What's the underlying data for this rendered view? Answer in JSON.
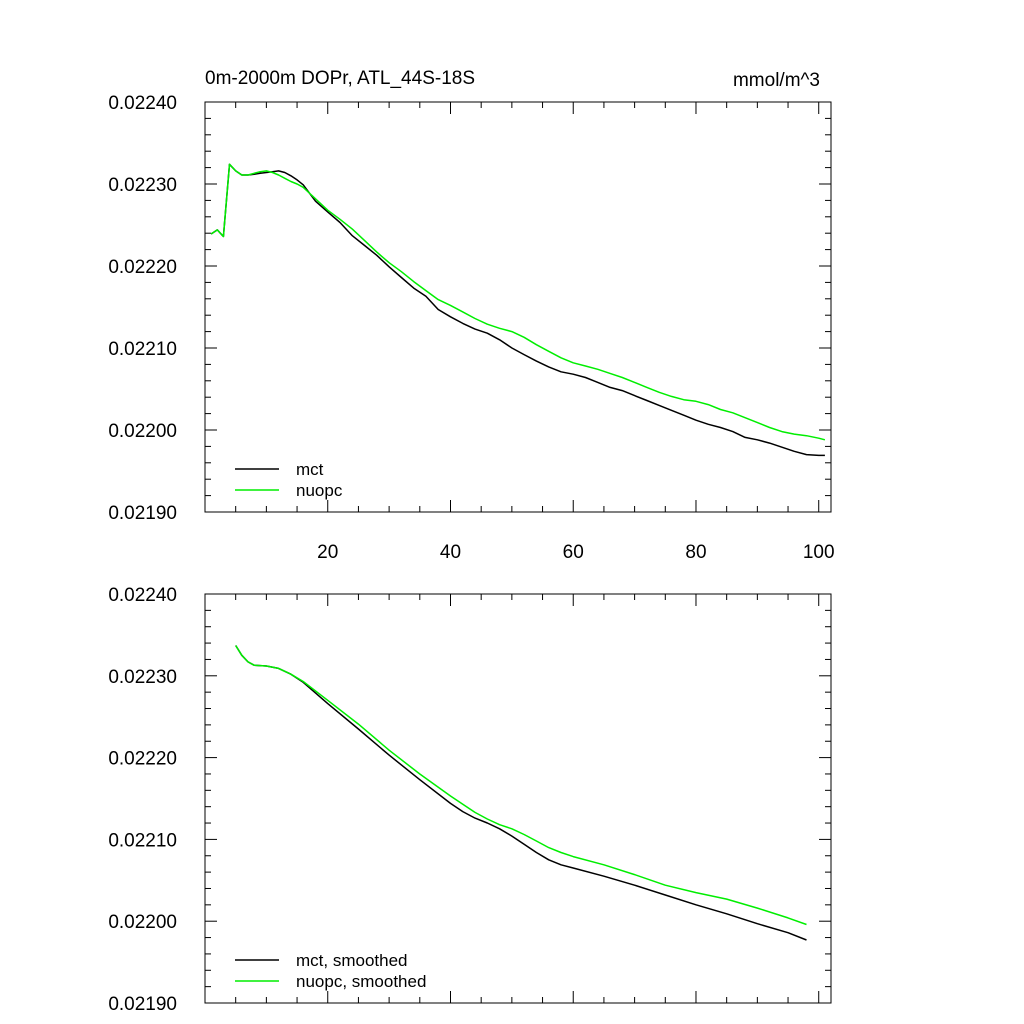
{
  "chart_data": [
    {
      "type": "line",
      "title": "0m-2000m DOPr, ATL_44S-18S",
      "units": "mmol/m^3",
      "xlim": [
        0,
        102
      ],
      "ylim": [
        0.0219,
        0.0224
      ],
      "xticks": [
        20,
        40,
        60,
        80,
        100
      ],
      "yticks": [
        0.0219,
        0.022,
        0.0221,
        0.0222,
        0.0223,
        0.0224
      ],
      "ytick_labels": [
        "0.02190",
        "0.02200",
        "0.02210",
        "0.02220",
        "0.02230",
        "0.02240"
      ],
      "legend_position": "bottom-left",
      "series": [
        {
          "name": "mct",
          "color": "#000000",
          "x": [
            1,
            2,
            3,
            4,
            5,
            6,
            7,
            8,
            9,
            10,
            11,
            12,
            13,
            14,
            15,
            16,
            18,
            20,
            22,
            24,
            26,
            28,
            30,
            32,
            34,
            36,
            38,
            40,
            42,
            44,
            46,
            48,
            50,
            52,
            54,
            56,
            58,
            60,
            62,
            64,
            66,
            68,
            70,
            72,
            74,
            76,
            78,
            80,
            82,
            84,
            86,
            88,
            90,
            92,
            94,
            96,
            98,
            100,
            101
          ],
          "y": [
            0.022239,
            0.022244,
            0.022236,
            0.022324,
            0.022316,
            0.022311,
            0.022311,
            0.022312,
            0.022313,
            0.022314,
            0.022315,
            0.022316,
            0.022314,
            0.02231,
            0.022305,
            0.022299,
            0.022279,
            0.022266,
            0.022253,
            0.022237,
            0.022225,
            0.022213,
            0.022199,
            0.022186,
            0.022173,
            0.022163,
            0.022147,
            0.022138,
            0.02213,
            0.022123,
            0.022118,
            0.02211,
            0.0221,
            0.022092,
            0.022084,
            0.022077,
            0.022071,
            0.022068,
            0.022064,
            0.022058,
            0.022052,
            0.022048,
            0.022042,
            0.022036,
            0.02203,
            0.022024,
            0.022018,
            0.022012,
            0.022007,
            0.022003,
            0.021998,
            0.021991,
            0.021988,
            0.021984,
            0.021979,
            0.021974,
            0.02197,
            0.021969,
            0.021969
          ]
        },
        {
          "name": "nuopc",
          "color": "#00ee00",
          "x": [
            1,
            2,
            3,
            4,
            5,
            6,
            7,
            8,
            9,
            10,
            11,
            12,
            13,
            14,
            15,
            16,
            18,
            20,
            22,
            24,
            26,
            28,
            30,
            32,
            34,
            36,
            38,
            40,
            42,
            44,
            46,
            48,
            50,
            52,
            54,
            56,
            58,
            60,
            62,
            64,
            66,
            68,
            70,
            72,
            74,
            76,
            78,
            80,
            82,
            84,
            86,
            88,
            90,
            92,
            94,
            96,
            98,
            100,
            101
          ],
          "y": [
            0.022239,
            0.022244,
            0.022236,
            0.022324,
            0.022316,
            0.022311,
            0.022311,
            0.022313,
            0.022315,
            0.022316,
            0.022314,
            0.022311,
            0.022307,
            0.022303,
            0.0223,
            0.022296,
            0.022282,
            0.022268,
            0.022257,
            0.022245,
            0.022231,
            0.022217,
            0.022204,
            0.022193,
            0.022181,
            0.02217,
            0.022159,
            0.022152,
            0.022144,
            0.022136,
            0.022129,
            0.022124,
            0.02212,
            0.022113,
            0.022104,
            0.022096,
            0.022088,
            0.022082,
            0.022078,
            0.022074,
            0.022069,
            0.022064,
            0.022058,
            0.022052,
            0.022046,
            0.022041,
            0.022037,
            0.022035,
            0.022031,
            0.022025,
            0.022021,
            0.022015,
            0.022009,
            0.022003,
            0.021998,
            0.021995,
            0.021993,
            0.02199,
            0.021988
          ]
        }
      ]
    },
    {
      "type": "line",
      "xlim": [
        0,
        102
      ],
      "ylim": [
        0.0219,
        0.0224
      ],
      "xticks": [
        20,
        40,
        60,
        80,
        100
      ],
      "yticks": [
        0.0219,
        0.022,
        0.0221,
        0.0222,
        0.0223,
        0.0224
      ],
      "ytick_labels": [
        "0.02190",
        "0.02200",
        "0.02210",
        "0.02220",
        "0.02230",
        "0.02240"
      ],
      "legend_position": "bottom-left",
      "series": [
        {
          "name": "mct, smoothed",
          "color": "#000000",
          "x": [
            5,
            6,
            7,
            8,
            10,
            12,
            14,
            16,
            20,
            25,
            30,
            35,
            40,
            42,
            44,
            46,
            48,
            50,
            52,
            54,
            56,
            58,
            60,
            65,
            70,
            75,
            80,
            85,
            90,
            95,
            98
          ],
          "y": [
            0.022337,
            0.022325,
            0.022317,
            0.022313,
            0.022312,
            0.022309,
            0.022302,
            0.022292,
            0.022266,
            0.022235,
            0.022203,
            0.022173,
            0.022144,
            0.022134,
            0.022126,
            0.02212,
            0.022113,
            0.022104,
            0.022094,
            0.022084,
            0.022075,
            0.022069,
            0.022065,
            0.022055,
            0.022044,
            0.022032,
            0.02202,
            0.022009,
            0.021997,
            0.021986,
            0.021977
          ]
        },
        {
          "name": "nuopc, smoothed",
          "color": "#00ee00",
          "x": [
            5,
            6,
            7,
            8,
            10,
            12,
            14,
            16,
            20,
            25,
            30,
            35,
            40,
            42,
            44,
            46,
            48,
            50,
            52,
            54,
            56,
            58,
            60,
            65,
            70,
            75,
            80,
            85,
            90,
            95,
            98
          ],
          "y": [
            0.022337,
            0.022325,
            0.022317,
            0.022313,
            0.022312,
            0.022309,
            0.022302,
            0.022293,
            0.02227,
            0.022241,
            0.022209,
            0.02218,
            0.022153,
            0.022143,
            0.022133,
            0.022125,
            0.022118,
            0.022113,
            0.022106,
            0.022098,
            0.02209,
            0.022084,
            0.022079,
            0.022069,
            0.022057,
            0.022044,
            0.022035,
            0.022027,
            0.022016,
            0.022004,
            0.021996
          ]
        }
      ]
    }
  ]
}
